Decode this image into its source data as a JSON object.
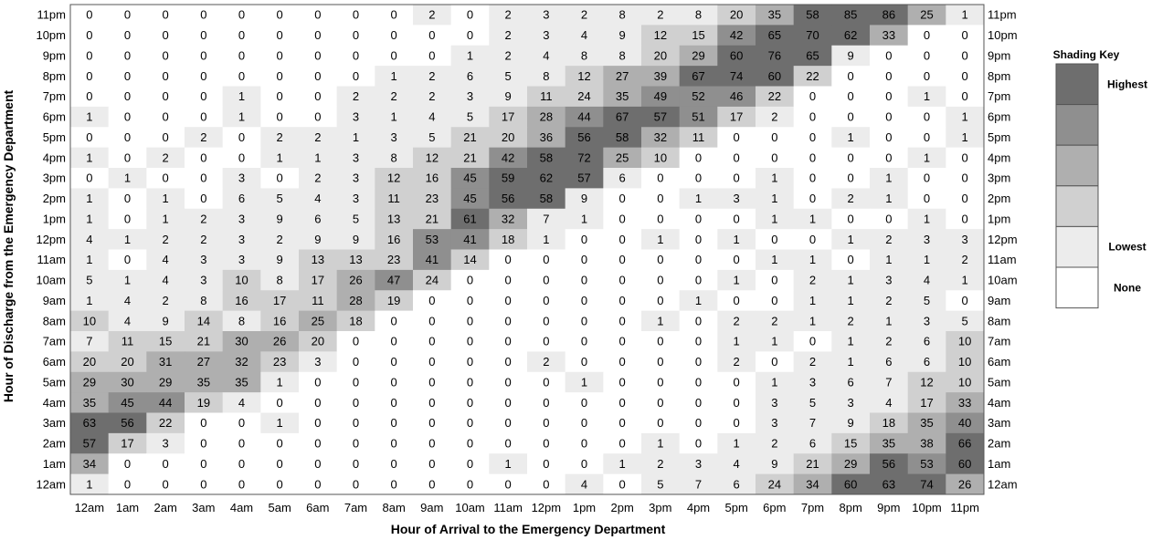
{
  "chart_data": {
    "type": "heatmap",
    "xlabel": "Hour of Arrival to the Emergency Department",
    "ylabel": "Hour of Discharge from the Emergency Department",
    "x_categories": [
      "12am",
      "1am",
      "2am",
      "3am",
      "4am",
      "5am",
      "6am",
      "7am",
      "8am",
      "9am",
      "10am",
      "11am",
      "12pm",
      "1pm",
      "2pm",
      "3pm",
      "4pm",
      "5pm",
      "6pm",
      "7pm",
      "8pm",
      "9pm",
      "10pm",
      "11pm"
    ],
    "y_categories": [
      "11pm",
      "10pm",
      "9pm",
      "8pm",
      "7pm",
      "6pm",
      "5pm",
      "4pm",
      "3pm",
      "2pm",
      "1pm",
      "12pm",
      "11am",
      "10am",
      "9am",
      "8am",
      "7am",
      "6am",
      "5am",
      "4am",
      "3am",
      "2am",
      "1am",
      "12am"
    ],
    "values": [
      [
        0,
        0,
        0,
        0,
        0,
        0,
        0,
        0,
        0,
        2,
        0,
        2,
        3,
        2,
        8,
        2,
        8,
        20,
        35,
        58,
        85,
        86,
        25,
        1
      ],
      [
        0,
        0,
        0,
        0,
        0,
        0,
        0,
        0,
        0,
        0,
        0,
        2,
        3,
        4,
        9,
        12,
        15,
        42,
        65,
        70,
        62,
        33,
        0,
        0
      ],
      [
        0,
        0,
        0,
        0,
        0,
        0,
        0,
        0,
        0,
        0,
        1,
        2,
        4,
        8,
        8,
        20,
        29,
        60,
        76,
        65,
        9,
        0,
        0,
        0
      ],
      [
        0,
        0,
        0,
        0,
        0,
        0,
        0,
        0,
        1,
        2,
        6,
        5,
        8,
        12,
        27,
        39,
        67,
        74,
        60,
        22,
        0,
        0,
        0,
        0
      ],
      [
        0,
        0,
        0,
        0,
        1,
        0,
        0,
        2,
        2,
        2,
        3,
        9,
        11,
        24,
        35,
        49,
        52,
        46,
        22,
        0,
        0,
        0,
        1,
        0
      ],
      [
        1,
        0,
        0,
        0,
        1,
        0,
        0,
        3,
        1,
        4,
        5,
        17,
        28,
        44,
        67,
        57,
        51,
        17,
        2,
        0,
        0,
        0,
        0,
        1
      ],
      [
        0,
        0,
        0,
        2,
        0,
        2,
        2,
        1,
        3,
        5,
        21,
        20,
        36,
        56,
        58,
        32,
        11,
        0,
        0,
        0,
        1,
        0,
        0,
        1
      ],
      [
        1,
        0,
        2,
        0,
        0,
        1,
        1,
        3,
        8,
        12,
        21,
        42,
        58,
        72,
        25,
        10,
        0,
        0,
        0,
        0,
        0,
        0,
        1,
        0
      ],
      [
        0,
        1,
        0,
        0,
        3,
        0,
        2,
        3,
        12,
        16,
        45,
        59,
        62,
        57,
        6,
        0,
        0,
        0,
        1,
        0,
        0,
        1,
        0,
        0
      ],
      [
        1,
        0,
        1,
        0,
        6,
        5,
        4,
        3,
        11,
        23,
        45,
        56,
        58,
        9,
        0,
        0,
        1,
        3,
        1,
        0,
        2,
        1,
        0,
        0
      ],
      [
        1,
        0,
        1,
        2,
        3,
        9,
        6,
        5,
        13,
        21,
        61,
        32,
        7,
        1,
        0,
        0,
        0,
        0,
        1,
        1,
        0,
        0,
        1,
        0
      ],
      [
        4,
        1,
        2,
        2,
        3,
        2,
        9,
        9,
        16,
        53,
        41,
        18,
        1,
        0,
        0,
        1,
        0,
        1,
        0,
        0,
        1,
        2,
        3,
        3
      ],
      [
        1,
        0,
        4,
        3,
        3,
        9,
        13,
        13,
        23,
        41,
        14,
        0,
        0,
        0,
        0,
        0,
        0,
        0,
        1,
        1,
        0,
        1,
        1,
        2
      ],
      [
        5,
        1,
        4,
        3,
        10,
        8,
        17,
        26,
        47,
        24,
        0,
        0,
        0,
        0,
        0,
        0,
        0,
        1,
        0,
        2,
        1,
        3,
        4,
        1
      ],
      [
        1,
        4,
        2,
        8,
        16,
        17,
        11,
        28,
        19,
        0,
        0,
        0,
        0,
        0,
        0,
        0,
        1,
        0,
        0,
        1,
        1,
        2,
        5,
        0
      ],
      [
        10,
        4,
        9,
        14,
        8,
        16,
        25,
        18,
        0,
        0,
        0,
        0,
        0,
        0,
        0,
        1,
        0,
        2,
        2,
        1,
        2,
        1,
        3,
        5
      ],
      [
        7,
        11,
        15,
        21,
        30,
        26,
        20,
        0,
        0,
        0,
        0,
        0,
        0,
        0,
        0,
        0,
        0,
        1,
        1,
        0,
        1,
        2,
        6,
        10
      ],
      [
        20,
        20,
        31,
        27,
        32,
        23,
        3,
        0,
        0,
        0,
        0,
        0,
        2,
        0,
        0,
        0,
        0,
        2,
        0,
        2,
        1,
        6,
        6,
        10
      ],
      [
        29,
        30,
        29,
        35,
        35,
        1,
        0,
        0,
        0,
        0,
        0,
        0,
        0,
        1,
        0,
        0,
        0,
        0,
        1,
        3,
        6,
        7,
        12,
        10
      ],
      [
        35,
        45,
        44,
        19,
        4,
        0,
        0,
        0,
        0,
        0,
        0,
        0,
        0,
        0,
        0,
        0,
        0,
        0,
        3,
        5,
        3,
        4,
        17,
        33
      ],
      [
        63,
        56,
        22,
        0,
        0,
        1,
        0,
        0,
        0,
        0,
        0,
        0,
        0,
        0,
        0,
        0,
        0,
        0,
        3,
        7,
        9,
        18,
        35,
        40
      ],
      [
        57,
        17,
        3,
        0,
        0,
        0,
        0,
        0,
        0,
        0,
        0,
        0,
        0,
        0,
        0,
        1,
        0,
        1,
        2,
        6,
        15,
        35,
        38,
        66
      ],
      [
        34,
        0,
        0,
        0,
        0,
        0,
        0,
        0,
        0,
        0,
        0,
        1,
        0,
        0,
        1,
        2,
        3,
        4,
        9,
        21,
        29,
        56,
        53,
        60
      ],
      [
        1,
        0,
        0,
        0,
        0,
        0,
        0,
        0,
        0,
        0,
        0,
        0,
        0,
        4,
        0,
        5,
        7,
        6,
        24,
        34,
        60,
        63,
        74,
        26
      ]
    ],
    "legend": {
      "title": "Shading Key",
      "levels": [
        "Highest",
        "",
        "",
        "",
        "Lowest",
        "None"
      ],
      "colors": [
        "#6e6e6e",
        "#8f8f8f",
        "#afafaf",
        "#d0d0d0",
        "#ececec",
        "#ffffff"
      ],
      "placement": "right"
    },
    "shade_thresholds": [
      1,
      10,
      25,
      40,
      55
    ],
    "grid": false
  }
}
